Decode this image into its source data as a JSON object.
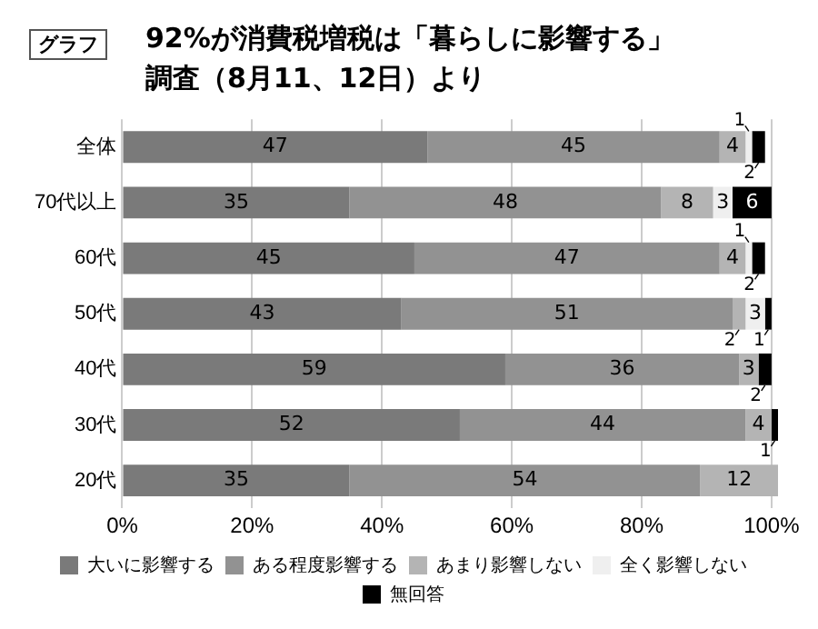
{
  "chart_data": {
    "type": "bar",
    "orientation": "horizontal",
    "stacked": true,
    "title": "92%が消費税増税は「暮らしに影響する」",
    "subtitle": "調査（8月11、12日）より",
    "annotations": [
      "グラフ"
    ],
    "categories": [
      "全体",
      "70代以上",
      "60代",
      "50代",
      "40代",
      "30代",
      "20代"
    ],
    "series": [
      {
        "name": "大いに影響する",
        "color": "#7a7a7a",
        "values": [
          47,
          35,
          45,
          43,
          59,
          52,
          35
        ]
      },
      {
        "name": "ある程度影響する",
        "color": "#929292",
        "values": [
          45,
          48,
          47,
          51,
          36,
          44,
          54
        ]
      },
      {
        "name": "あまり影響しない",
        "color": "#b4b4b4",
        "values": [
          4,
          8,
          4,
          2,
          3,
          4,
          12
        ]
      },
      {
        "name": "全く影響しない",
        "color": "#efefef",
        "values": [
          1,
          3,
          1,
          3,
          null,
          null,
          null
        ]
      },
      {
        "name": "無回答",
        "color": "#000000",
        "values": [
          2,
          6,
          2,
          1,
          2,
          1,
          null
        ]
      }
    ],
    "xlim": [
      0,
      101
    ],
    "xticks": [
      {
        "value": 0,
        "label": "0%"
      },
      {
        "value": 20,
        "label": "20%"
      },
      {
        "value": 40,
        "label": "40%"
      },
      {
        "value": 60,
        "label": "60%"
      },
      {
        "value": 80,
        "label": "80%"
      },
      {
        "value": 100,
        "label": "100%"
      }
    ],
    "grid": "x",
    "legend": "bottom",
    "data_labels": true
  }
}
